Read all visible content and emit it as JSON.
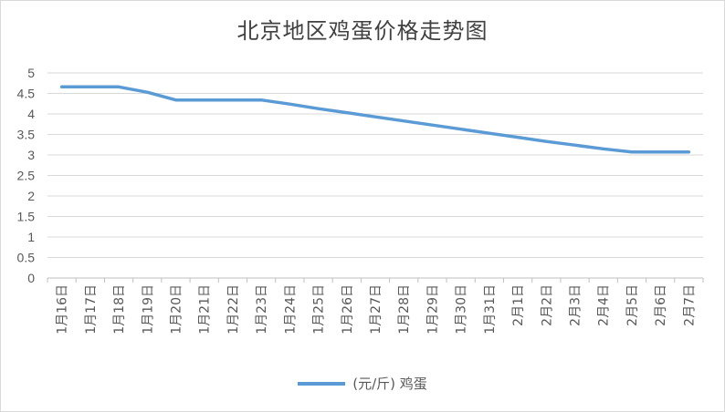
{
  "chart_data": {
    "type": "line",
    "title": "北京地区鸡蛋价格走势图",
    "categories": [
      "1月16日",
      "1月17日",
      "1月18日",
      "1月19日",
      "1月20日",
      "1月21日",
      "1月22日",
      "1月23日",
      "1月24日",
      "1月25日",
      "1月26日",
      "1月27日",
      "1月28日",
      "1月29日",
      "1月30日",
      "1月31日",
      "2月1日",
      "2月2日",
      "2月3日",
      "2月4日",
      "2月5日",
      "2月6日",
      "2月7日"
    ],
    "series": [
      {
        "name": "(元/斤) 鸡蛋",
        "color": "#5b9bd5",
        "values": [
          4.66,
          4.66,
          4.66,
          4.53,
          4.34,
          4.34,
          4.34,
          4.34,
          4.24,
          4.13,
          4.03,
          3.93,
          3.83,
          3.73,
          3.63,
          3.53,
          3.43,
          3.33,
          3.24,
          3.15,
          3.07,
          3.07,
          3.07
        ]
      }
    ],
    "yticks": [
      "0",
      "0.5",
      "1",
      "1.5",
      "2",
      "2.5",
      "3",
      "3.5",
      "4",
      "4.5",
      "5"
    ],
    "ylim": [
      0,
      5
    ],
    "grid": true,
    "legend": "bottom"
  }
}
